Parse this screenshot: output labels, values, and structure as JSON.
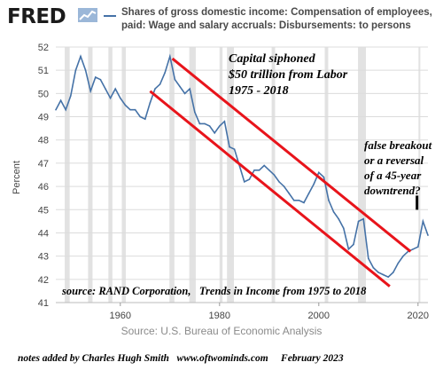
{
  "header": {
    "logo": "FRED",
    "legend": "Shares of gross domestic income: Compensation of employees, paid: Wage and salary accruals: Disbursements: to persons",
    "series_color": "#4572a7"
  },
  "chart_data": {
    "type": "line",
    "ylabel": "Percent",
    "xlim": [
      1947,
      2022
    ],
    "ylim": [
      41,
      52
    ],
    "yticks": [
      41,
      42,
      43,
      44,
      45,
      46,
      47,
      48,
      49,
      50,
      51,
      52
    ],
    "xticks": [
      1960,
      1980,
      2000,
      2020
    ],
    "recessions": [
      [
        1948.8,
        1949.8
      ],
      [
        1953.5,
        1954.4
      ],
      [
        1957.6,
        1958.4
      ],
      [
        1960.3,
        1961.1
      ],
      [
        1969.9,
        1970.9
      ],
      [
        1973.9,
        1975.2
      ],
      [
        1980.0,
        1980.6
      ],
      [
        1981.5,
        1982.9
      ],
      [
        1990.5,
        1991.2
      ],
      [
        2001.2,
        2001.9
      ],
      [
        2007.9,
        2009.5
      ],
      [
        2020.1,
        2020.4
      ]
    ],
    "series": [
      {
        "x": [
          1947,
          1948,
          1949,
          1950,
          1951,
          1952,
          1953,
          1954,
          1955,
          1956,
          1957,
          1958,
          1959,
          1960,
          1961,
          1962,
          1963,
          1964,
          1965,
          1966,
          1967,
          1968,
          1969,
          1970,
          1971,
          1972,
          1973,
          1974,
          1975,
          1976,
          1977,
          1978,
          1979,
          1980,
          1981,
          1982,
          1983,
          1984,
          1985,
          1986,
          1987,
          1988,
          1989,
          1990,
          1991,
          1992,
          1993,
          1994,
          1995,
          1996,
          1997,
          1998,
          1999,
          2000,
          2001,
          2002,
          2003,
          2004,
          2005,
          2006,
          2007,
          2008,
          2009,
          2010,
          2011,
          2012,
          2013,
          2014,
          2015,
          2016,
          2017,
          2018,
          2019,
          2020,
          2021,
          2022
        ],
        "values": [
          49.3,
          49.7,
          49.3,
          49.9,
          51.0,
          51.6,
          51.0,
          50.1,
          50.7,
          50.6,
          50.2,
          49.8,
          50.2,
          49.8,
          49.5,
          49.3,
          49.3,
          49.0,
          48.9,
          49.6,
          50.2,
          50.4,
          50.9,
          51.6,
          50.6,
          50.3,
          50.0,
          50.2,
          49.2,
          48.7,
          48.7,
          48.6,
          48.3,
          48.6,
          48.8,
          47.7,
          47.6,
          46.9,
          46.2,
          46.3,
          46.7,
          46.7,
          46.9,
          46.7,
          46.5,
          46.2,
          46.0,
          45.7,
          45.4,
          45.4,
          45.3,
          45.7,
          46.1,
          46.6,
          46.4,
          45.4,
          44.9,
          44.6,
          44.2,
          43.3,
          43.5,
          44.5,
          44.6,
          42.9,
          42.5,
          42.3,
          42.2,
          42.1,
          42.3,
          42.7,
          43.0,
          43.2,
          43.3,
          43.4,
          44.5,
          43.9
        ]
      }
    ],
    "annotations": {
      "channel": "Capital siphoned $50 trillion from Labor 1975 - 2018",
      "channel_lines": [
        "Capital siphoned",
        "$50 trillion from Labor",
        "1975 - 2018"
      ],
      "breakout_lines": [
        "false breakout",
        "or a reversal",
        "of a 45-year",
        "downtrend?"
      ],
      "source_note": "source: RAND Corporation,   Trends in Income from 1975 to 2018",
      "channel_color": "#e8141b",
      "channel_upper": [
        [
          1970.5,
          51.5
        ],
        [
          2018.5,
          43.2
        ]
      ],
      "channel_lower": [
        [
          1966.0,
          50.1
        ],
        [
          2014.3,
          41.7
        ]
      ],
      "arrow_at": [
        2019.8,
        45.3
      ]
    }
  },
  "footer": {
    "source": "Source: U.S. Bureau of Economic Analysis",
    "notes": "notes added by Charles Hugh Smith   www.oftwominds.com     February 2023"
  }
}
